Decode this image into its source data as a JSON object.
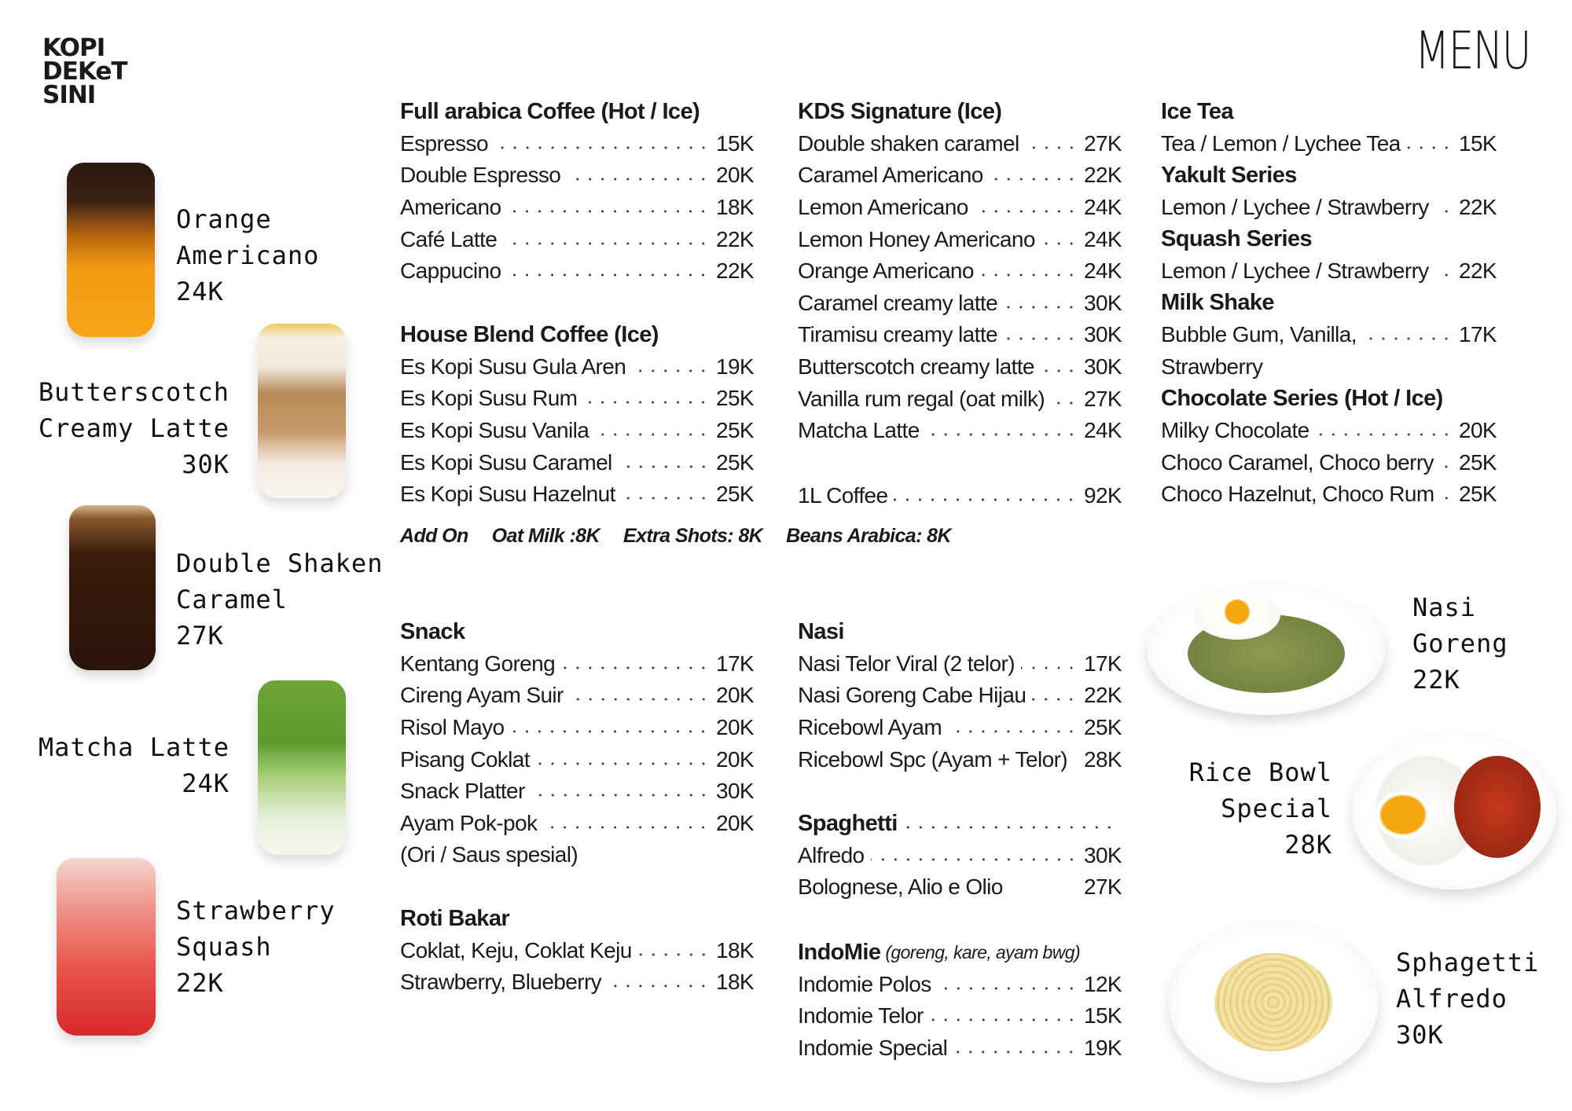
{
  "brand": {
    "logo_lines": [
      "KOPI",
      "DEKeT",
      "SINI"
    ]
  },
  "title": "MENU",
  "blocks": {
    "full_arabica": [
      {
        "heading": "Full arabica Coffee (Hot / Ice)"
      },
      {
        "name": "Espresso",
        "price": "15K"
      },
      {
        "name": "Double Espresso",
        "price": "20K"
      },
      {
        "name": "Americano",
        "price": "18K"
      },
      {
        "name": "Café Latte",
        "price": "22K"
      },
      {
        "name": "Cappucino",
        "price": "22K"
      }
    ],
    "house_blend": [
      {
        "heading": "House Blend Coffee (Ice)"
      },
      {
        "name": "Es Kopi Susu Gula Aren",
        "price": "19K"
      },
      {
        "name": "Es Kopi Susu Rum",
        "price": "25K"
      },
      {
        "name": "Es Kopi Susu Vanila",
        "price": "25K"
      },
      {
        "name": "Es Kopi Susu Caramel",
        "price": "25K"
      },
      {
        "name": "Es Kopi Susu Hazelnut",
        "price": "25K"
      }
    ],
    "kds_signature": [
      {
        "heading": "KDS Signature (Ice)"
      },
      {
        "name": "Double shaken caramel",
        "price": "27K"
      },
      {
        "name": "Caramel Americano",
        "price": "22K"
      },
      {
        "name": "Lemon Americano",
        "price": "24K"
      },
      {
        "name": "Lemon Honey Americano",
        "price": "24K"
      },
      {
        "name": "Orange Americano",
        "price": "24K"
      },
      {
        "name": "Caramel creamy latte",
        "price": "30K"
      },
      {
        "name": "Tiramisu creamy latte",
        "price": "30K"
      },
      {
        "name": "Butterscotch creamy latte",
        "price": "30K"
      },
      {
        "name": "Vanilla rum regal (oat milk)",
        "price": "27K"
      },
      {
        "name": "Matcha Latte",
        "price": "24K"
      }
    ],
    "one_liter": [
      {
        "name": "1L Coffee",
        "price": "92K"
      }
    ],
    "tea_and_more": [
      {
        "heading": "Ice Tea"
      },
      {
        "name": "Tea / Lemon / Lychee Tea",
        "price": "15K"
      },
      {
        "heading": "Yakult Series"
      },
      {
        "name": "Lemon / Lychee / Strawberry",
        "price": "22K"
      },
      {
        "heading": "Squash Series"
      },
      {
        "name": "Lemon / Lychee / Strawberry",
        "price": "22K"
      },
      {
        "heading": "Milk Shake"
      },
      {
        "name": "Bubble Gum, Vanilla,",
        "price": "17K"
      },
      {
        "note": "Strawberry"
      },
      {
        "heading": "Chocolate Series (Hot / Ice)"
      },
      {
        "name": "Milky Chocolate",
        "price": "20K"
      },
      {
        "name": "Choco Caramel, Choco berry",
        "price": "25K"
      },
      {
        "name": "Choco Hazelnut, Choco Rum",
        "price": "25K"
      }
    ],
    "snack": [
      {
        "heading": "Snack"
      },
      {
        "name": "Kentang Goreng",
        "price": "17K"
      },
      {
        "name": "Cireng Ayam Suir",
        "price": "20K"
      },
      {
        "name": "Risol Mayo",
        "price": "20K"
      },
      {
        "name": "Pisang Coklat",
        "price": "20K"
      },
      {
        "name": "Snack Platter",
        "price": "30K"
      },
      {
        "name": "Ayam Pok-pok",
        "price": "20K"
      },
      {
        "note": "(Ori / Saus spesial)"
      }
    ],
    "roti_bakar": [
      {
        "heading": "Roti Bakar"
      },
      {
        "name": "Coklat, Keju, Coklat Keju",
        "price": "18K"
      },
      {
        "name": "Strawberry, Blueberry",
        "price": "18K"
      }
    ],
    "nasi": [
      {
        "heading": "Nasi"
      },
      {
        "name": "Nasi Telor Viral (2 telor)",
        "price": "17K"
      },
      {
        "name": "Nasi Goreng Cabe Hijau",
        "price": "22K"
      },
      {
        "name": "Ricebowl Ayam",
        "price": "25K"
      },
      {
        "name": "Ricebowl Spc (Ayam + Telor)",
        "price": "28K"
      }
    ],
    "spaghetti": [
      {
        "heading": "Spaghetti",
        "dots": true
      },
      {
        "name": "Alfredo",
        "price": "30K"
      },
      {
        "name": "Bolognese,  Alio e Olio",
        "price": "27K",
        "nodots": true
      }
    ],
    "indomie": [
      {
        "heading": "IndoMie",
        "sub": "(goreng, kare, ayam bwg)"
      },
      {
        "name": "Indomie Polos",
        "price": "12K"
      },
      {
        "name": "Indomie Telor",
        "price": "15K"
      },
      {
        "name": "Indomie Special",
        "price": "19K"
      }
    ]
  },
  "addon": {
    "label": "Add On",
    "items": [
      "Oat Milk :8K",
      "Extra Shots: 8K",
      "Beans Arabica: 8K"
    ]
  },
  "featured": {
    "orange_americano": [
      "Orange",
      "Americano",
      "24K"
    ],
    "butterscotch": [
      "Butterscotch",
      "Creamy Latte",
      "30K"
    ],
    "double_shaken": [
      "Double Shaken",
      "Caramel",
      "27K"
    ],
    "matcha": [
      "Matcha Latte",
      "24K"
    ],
    "strawberry": [
      "Strawberry",
      "Squash",
      "22K"
    ],
    "nasi_goreng": [
      "Nasi",
      "Goreng",
      "22K"
    ],
    "rice_bowl": [
      "Rice Bowl",
      "Special",
      "28K"
    ],
    "spaghetti": [
      "Sphagetti",
      "Alfredo",
      "30K"
    ]
  }
}
